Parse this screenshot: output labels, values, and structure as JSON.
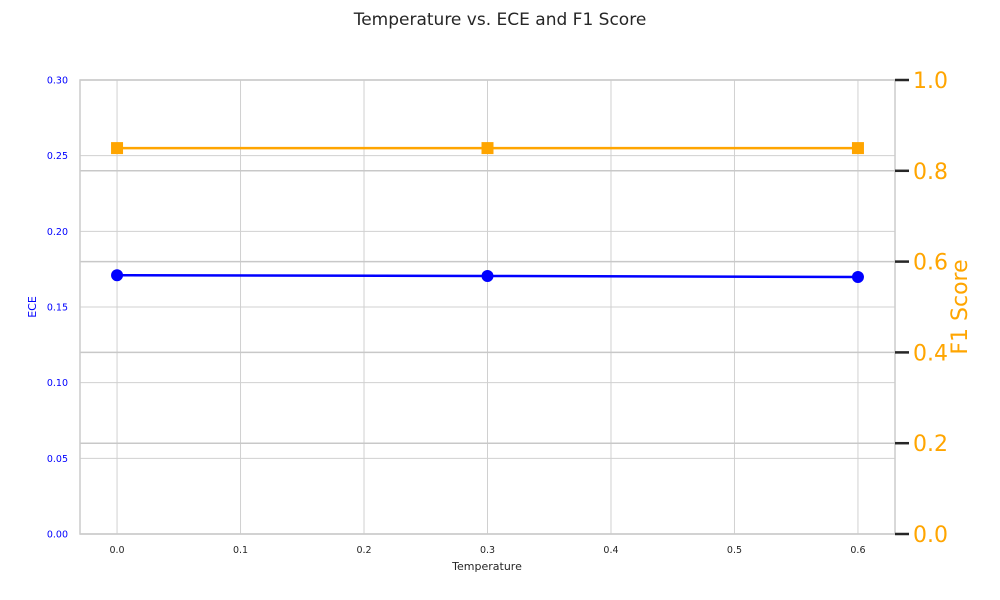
{
  "chart_data": {
    "type": "line",
    "title": "Temperature vs. ECE and F1 Score",
    "xlabel": "Temperature",
    "x": [
      0.0,
      0.3,
      0.6
    ],
    "x_ticks": [
      "0.0",
      "0.1",
      "0.2",
      "0.3",
      "0.4",
      "0.5",
      "0.6"
    ],
    "x_tick_values": [
      0.0,
      0.1,
      0.2,
      0.3,
      0.4,
      0.5,
      0.6
    ],
    "xlim": [
      -0.03,
      0.63
    ],
    "left_axis": {
      "label": "ECE",
      "ylim": [
        0.0,
        0.3
      ],
      "ticks": [
        "0.00",
        "0.05",
        "0.10",
        "0.15",
        "0.20",
        "0.25",
        "0.30"
      ],
      "tick_values": [
        0.0,
        0.05,
        0.1,
        0.15,
        0.2,
        0.25,
        0.3
      ],
      "color": "#0000ff"
    },
    "right_axis": {
      "label": "F1 Score",
      "ylim": [
        0.0,
        1.0
      ],
      "ticks": [
        "0.0",
        "0.2",
        "0.4",
        "0.6",
        "0.8",
        "1.0"
      ],
      "tick_values": [
        0.0,
        0.2,
        0.4,
        0.6,
        0.8,
        1.0
      ],
      "color": "#ffa500"
    },
    "series": [
      {
        "axis": "left",
        "marker": "circle",
        "color": "#0000ff",
        "values": [
          0.171,
          0.1705,
          0.1698
        ]
      },
      {
        "axis": "right",
        "marker": "square",
        "color": "#ffa500",
        "values": [
          0.85,
          0.85,
          0.85
        ]
      }
    ],
    "grid": true
  }
}
